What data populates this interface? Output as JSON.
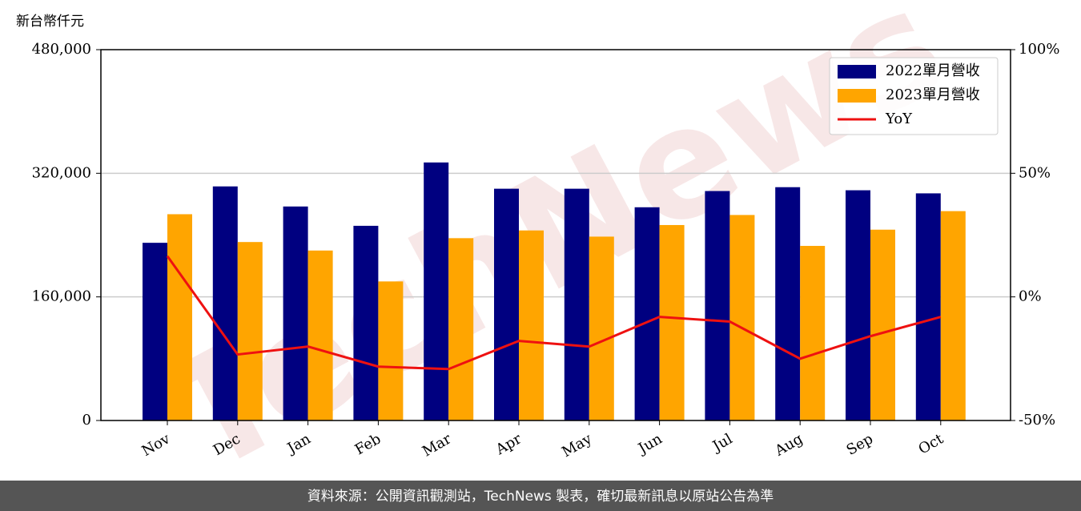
{
  "chart_data": {
    "type": "bar_line",
    "ylabel": "新台幣仟元",
    "categories": [
      "Nov",
      "Dec",
      "Jan",
      "Feb",
      "Mar",
      "Apr",
      "May",
      "Jun",
      "Jul",
      "Aug",
      "Sep",
      "Oct"
    ],
    "series": [
      {
        "name": "2022單月營收",
        "color": "#000080",
        "type": "bar",
        "values": [
          230000,
          303000,
          277000,
          252000,
          334000,
          300000,
          300000,
          276000,
          297000,
          302000,
          298000,
          294000
        ]
      },
      {
        "name": "2023單月營收",
        "color": "#ffa500",
        "type": "bar",
        "values": [
          267000,
          231000,
          220000,
          180000,
          236000,
          246000,
          238000,
          253000,
          266000,
          226000,
          247000,
          271000
        ]
      },
      {
        "name": "YoY",
        "color": "#ee1111",
        "type": "line",
        "axis": "y2",
        "values": [
          16.5,
          -23.3,
          -20.1,
          -28.2,
          -29.2,
          -17.8,
          -20.1,
          -8.1,
          -10.0,
          -25.0,
          -15.9,
          -8.1
        ]
      }
    ],
    "ylim": [
      0,
      480000
    ],
    "yticks": [
      0,
      {
        "value": 160000,
        "label": "160,000"
      },
      {
        "value": 320000,
        "label": "320,000"
      },
      {
        "value": 480000,
        "label": "480,000"
      }
    ],
    "y2lim": [
      -50,
      100
    ],
    "y2ticks": [
      {
        "value": -50,
        "label": "-50%"
      },
      {
        "value": 0,
        "label": "0%"
      },
      {
        "value": 50,
        "label": "50%"
      },
      {
        "value": 100,
        "label": "100%"
      }
    ],
    "grid": true,
    "legend": "upper right",
    "watermark": "TechNews",
    "footer": "資料來源：公開資訊觀測站，TechNews 製表，確切最新訊息以原站公告為準"
  }
}
